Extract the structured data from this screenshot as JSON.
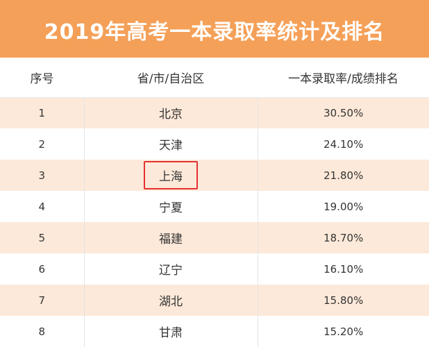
{
  "title": "2019年高考一本录取率统计及排名",
  "headers": [
    "序号",
    "省/市/自治区",
    "一本录取率/成绩排名"
  ],
  "rows": [
    {
      "rank": "1",
      "region": "北京",
      "rate": "30.50%"
    },
    {
      "rank": "2",
      "region": "天津",
      "rate": "24.10%"
    },
    {
      "rank": "3",
      "region": "上海",
      "rate": "21.80%",
      "highlighted": true
    },
    {
      "rank": "4",
      "region": "宁夏",
      "rate": "19.00%"
    },
    {
      "rank": "5",
      "region": "福建",
      "rate": "18.70%"
    },
    {
      "rank": "6",
      "region": "辽宁",
      "rate": "16.10%"
    },
    {
      "rank": "7",
      "region": "湖北",
      "rate": "15.80%"
    },
    {
      "rank": "8",
      "region": "甘肃",
      "rate": "15.20%"
    }
  ],
  "colors": {
    "banner": "#f5a058",
    "stripe": "#fde9d9",
    "highlight_border": "#e53030"
  }
}
